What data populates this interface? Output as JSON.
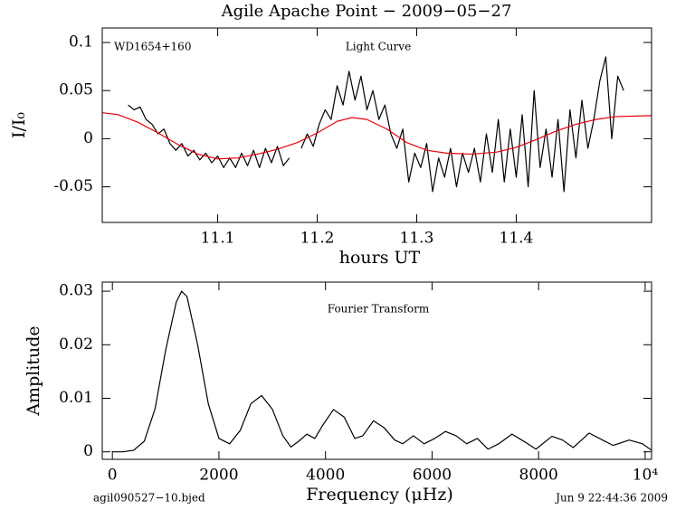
{
  "chart_data": [
    {
      "type": "line",
      "title": "Agile Apache Point − 2009−05−27",
      "xlabel": "hours UT",
      "ylabel": "I/I₀",
      "annotations": [
        "WD1654+160",
        "Light Curve"
      ],
      "xlim": [
        10.984,
        11.536
      ],
      "xticks": [
        11.1,
        11.2,
        11.3,
        11.4
      ],
      "ylim": [
        -0.087,
        0.115
      ],
      "yticks": [
        -0.05,
        0,
        0.05,
        0.1
      ],
      "series": [
        {
          "color": "#000000",
          "x": [
            11.01,
            11.016,
            11.022,
            11.028,
            11.034,
            11.04,
            11.046,
            11.052,
            11.058,
            11.064,
            11.07,
            11.076,
            11.082,
            11.088,
            11.094,
            11.1,
            11.106,
            11.112,
            11.118,
            11.124,
            11.13,
            11.136,
            11.142,
            11.148,
            11.154,
            11.16,
            11.166,
            11.172,
            11.178,
            11.184,
            11.19,
            11.196,
            11.202,
            11.208,
            11.214,
            11.22,
            11.226,
            11.232,
            11.238,
            11.244,
            11.25,
            11.256,
            11.262,
            11.268,
            11.274,
            11.28,
            11.286,
            11.292,
            11.298,
            11.304,
            11.31,
            11.316,
            11.322,
            11.328,
            11.334,
            11.34,
            11.346,
            11.352,
            11.358,
            11.364,
            11.37,
            11.376,
            11.382,
            11.388,
            11.394,
            11.4,
            11.406,
            11.412,
            11.418,
            11.424,
            11.43,
            11.436,
            11.442,
            11.448,
            11.454,
            11.46,
            11.466,
            11.472,
            11.478,
            11.484,
            11.49,
            11.496,
            11.502,
            11.508
          ],
          "values": [
            0.035,
            0.03,
            0.033,
            0.02,
            0.015,
            0.005,
            0.01,
            -0.005,
            -0.012,
            -0.005,
            -0.018,
            -0.012,
            -0.022,
            -0.015,
            -0.025,
            -0.018,
            -0.03,
            -0.02,
            -0.03,
            -0.015,
            -0.028,
            -0.012,
            -0.03,
            -0.01,
            -0.025,
            -0.008,
            -0.028,
            -0.02,
            null,
            -0.01,
            0.005,
            -0.008,
            0.015,
            0.03,
            0.02,
            0.055,
            0.035,
            0.07,
            0.04,
            0.065,
            0.03,
            0.05,
            0.02,
            0.035,
            0.005,
            -0.01,
            0.01,
            -0.045,
            -0.015,
            -0.03,
            -0.005,
            -0.055,
            -0.02,
            -0.04,
            -0.01,
            -0.05,
            -0.015,
            -0.035,
            -0.01,
            -0.045,
            0.005,
            -0.035,
            0.02,
            -0.045,
            0.01,
            -0.04,
            0.025,
            -0.05,
            0.05,
            -0.03,
            0.01,
            -0.04,
            0.02,
            -0.055,
            0.03,
            -0.02,
            0.04,
            -0.01,
            0.02,
            0.06,
            0.085,
            0.0,
            0.065,
            0.05
          ]
        },
        {
          "color": "#e8000b",
          "x": [
            10.984,
            11.0,
            11.02,
            11.04,
            11.06,
            11.08,
            11.1,
            11.12,
            11.14,
            11.16,
            11.18,
            11.2,
            11.22,
            11.235,
            11.25,
            11.27,
            11.29,
            11.31,
            11.33,
            11.355,
            11.38,
            11.4,
            11.42,
            11.44,
            11.46,
            11.48,
            11.5,
            11.536
          ],
          "values": [
            0.027,
            0.025,
            0.017,
            0.006,
            -0.006,
            -0.016,
            -0.021,
            -0.02,
            -0.016,
            -0.011,
            -0.004,
            0.006,
            0.018,
            0.022,
            0.02,
            0.01,
            -0.004,
            -0.012,
            -0.015,
            -0.016,
            -0.014,
            -0.009,
            -0.001,
            0.008,
            0.015,
            0.02,
            0.023,
            0.024
          ]
        }
      ]
    },
    {
      "type": "line",
      "xlabel": "Frequency (μHz)",
      "ylabel": "Amplitude",
      "annotations": [
        "Fourier Transform"
      ],
      "footer": {
        "left": "agil090527−10.bjed",
        "right": "Jun  9 22:44:36 2009"
      },
      "xlim": [
        -190,
        10120
      ],
      "xticks": [
        0,
        2000,
        4000,
        6000,
        8000,
        {
          "value": 10000,
          "label": "10⁴"
        }
      ],
      "ylim": [
        -0.0014,
        0.0317
      ],
      "yticks": [
        0,
        0.01,
        0.02,
        0.03
      ],
      "series": [
        {
          "color": "#000000",
          "x": [
            0,
            200,
            400,
            600,
            800,
            1000,
            1200,
            1300,
            1400,
            1600,
            1800,
            2000,
            2200,
            2400,
            2600,
            2800,
            3000,
            3200,
            3350,
            3500,
            3650,
            3800,
            3950,
            4150,
            4350,
            4550,
            4700,
            4900,
            5100,
            5300,
            5450,
            5650,
            5850,
            6050,
            6250,
            6450,
            6650,
            6850,
            7050,
            7250,
            7500,
            7750,
            7950,
            8250,
            8450,
            8650,
            8950,
            9200,
            9400,
            9700,
            9950,
            10120
          ],
          "values": [
            0,
            0,
            0.0003,
            0.002,
            0.008,
            0.019,
            0.028,
            0.03,
            0.029,
            0.02,
            0.009,
            0.0025,
            0.0015,
            0.004,
            0.009,
            0.0105,
            0.008,
            0.003,
            0.0009,
            0.002,
            0.0033,
            0.0025,
            0.005,
            0.0079,
            0.0065,
            0.0025,
            0.003,
            0.0058,
            0.0045,
            0.0022,
            0.0015,
            0.003,
            0.0015,
            0.0025,
            0.0038,
            0.003,
            0.0015,
            0.0025,
            0.0005,
            0.0015,
            0.0033,
            0.0018,
            0.0005,
            0.0029,
            0.0022,
            0.0008,
            0.0035,
            0.0022,
            0.0012,
            0.0022,
            0.0015,
            0.0003
          ]
        }
      ]
    }
  ]
}
